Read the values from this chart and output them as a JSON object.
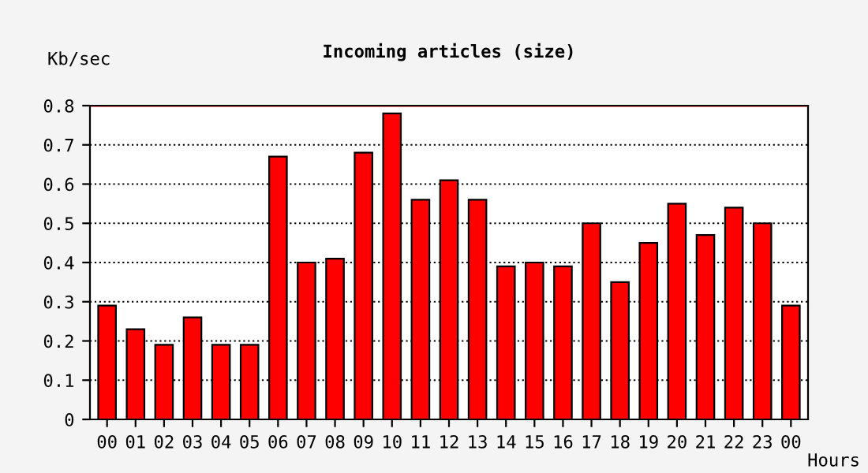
{
  "chart_data": {
    "type": "bar",
    "title": "Incoming articles (size)",
    "ylabel": "Kb/sec",
    "xlabel": "Hours",
    "categories": [
      "00",
      "01",
      "02",
      "03",
      "04",
      "05",
      "06",
      "07",
      "08",
      "09",
      "10",
      "11",
      "12",
      "13",
      "14",
      "15",
      "16",
      "17",
      "18",
      "19",
      "20",
      "21",
      "22",
      "23",
      "00"
    ],
    "values": [
      0.29,
      0.23,
      0.19,
      0.26,
      0.19,
      0.19,
      0.67,
      0.4,
      0.41,
      0.68,
      0.78,
      0.56,
      0.61,
      0.56,
      0.39,
      0.4,
      0.39,
      0.5,
      0.35,
      0.45,
      0.55,
      0.47,
      0.54,
      0.5,
      0.29
    ],
    "color": "#ff0000",
    "ylim": [
      0,
      0.8
    ],
    "yticks": [
      0,
      0.1,
      0.2,
      0.3,
      0.4,
      0.5,
      0.6,
      0.7,
      0.8
    ],
    "grid": "y",
    "line_style": "dotted",
    "ref_lines": [
      {
        "axis": "y",
        "value": 0.8,
        "color": "#ff0000",
        "line_style": "solid"
      }
    ]
  }
}
